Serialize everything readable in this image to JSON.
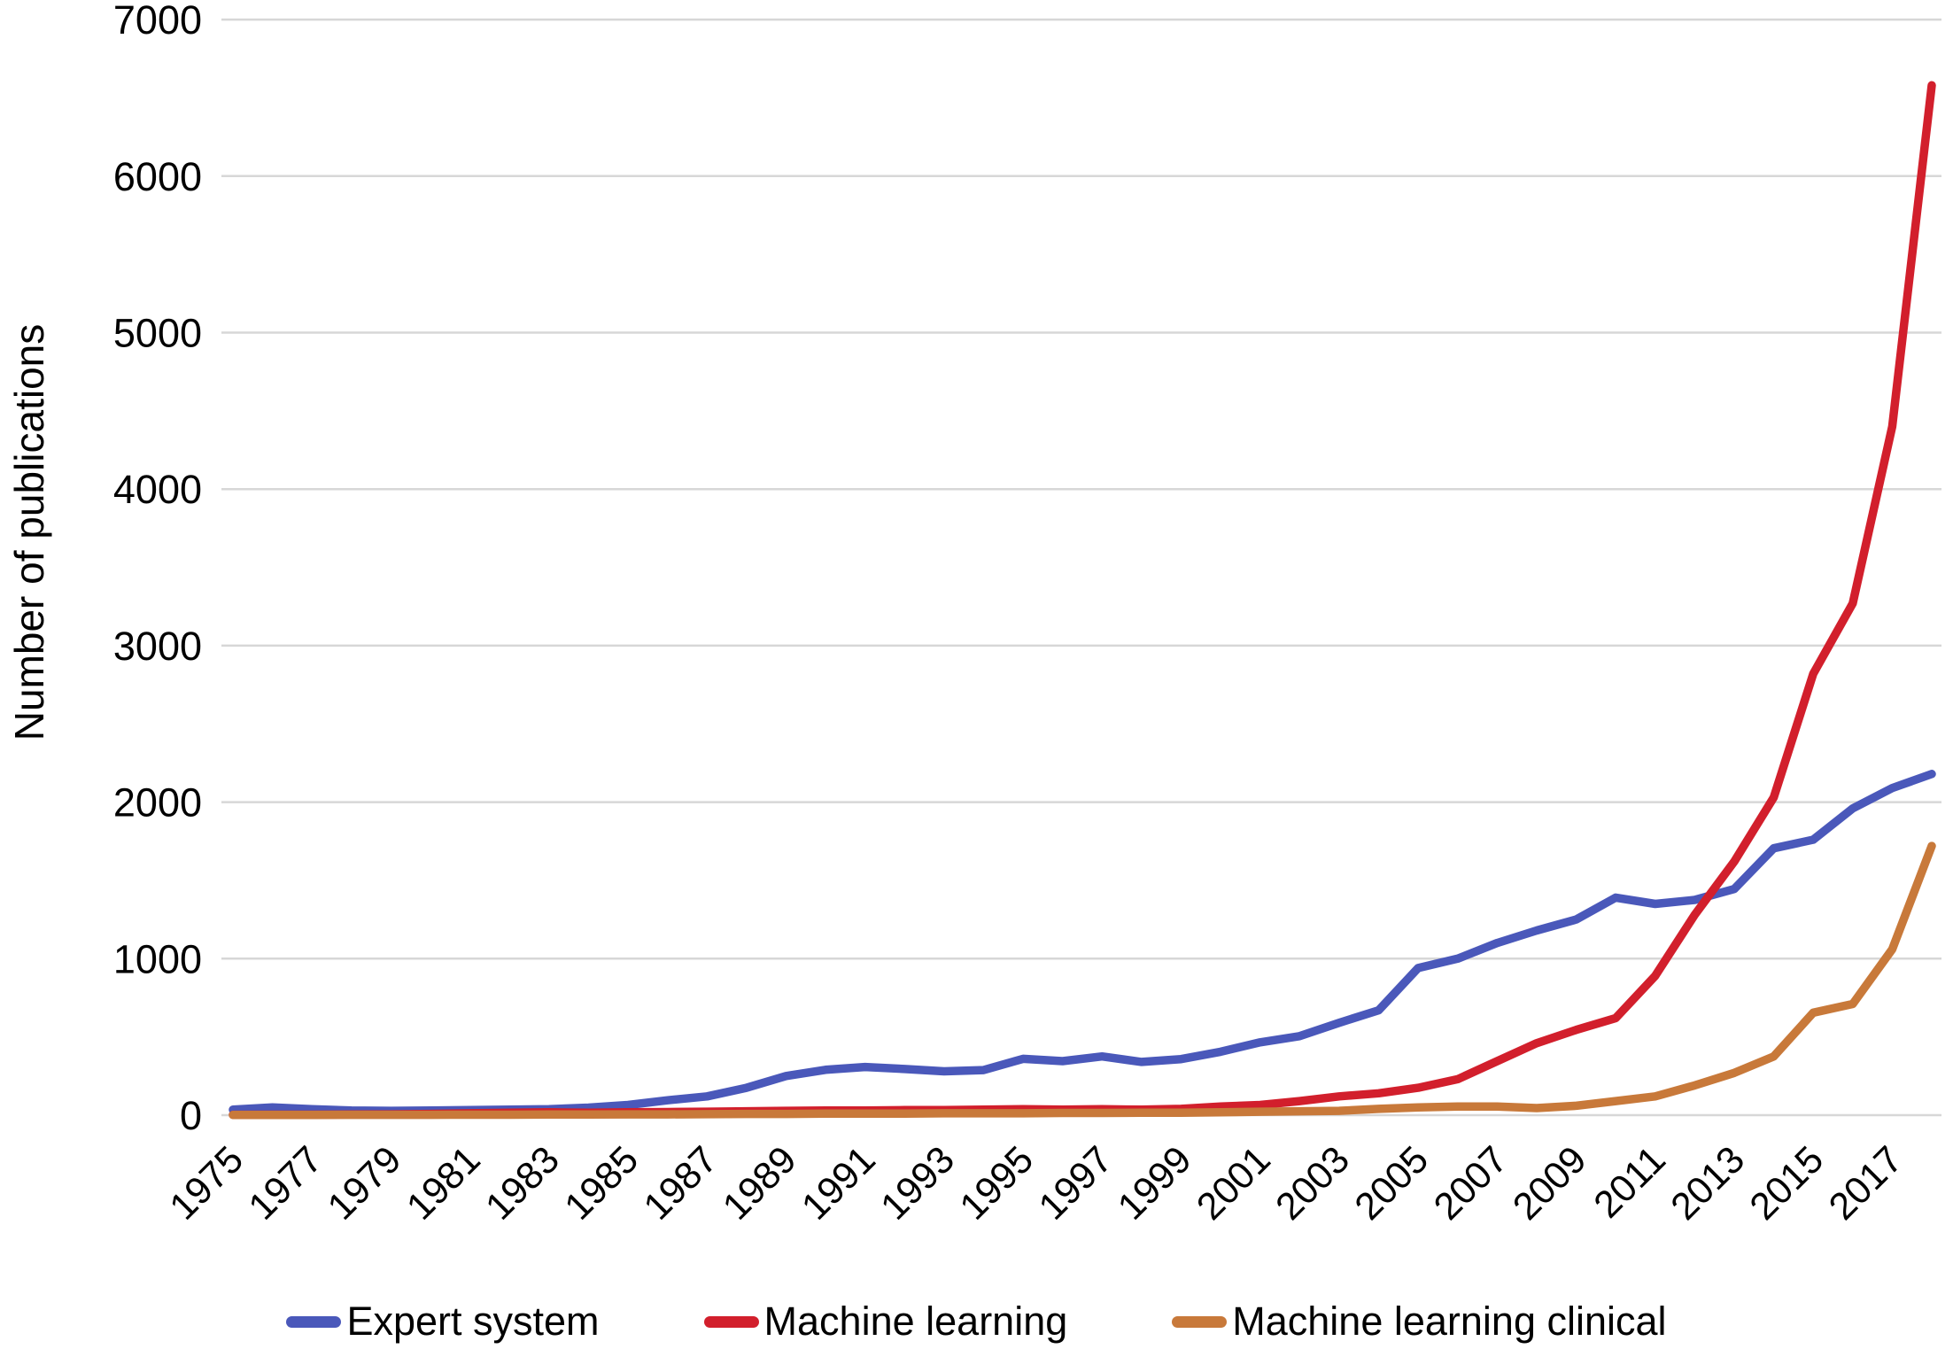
{
  "figure": {
    "background_color": "#ffffff",
    "axis_text_color": "#000000"
  },
  "chart_data": {
    "type": "line",
    "title": "",
    "xlabel": "",
    "ylabel": "Number of publications",
    "ylim": [
      0,
      7000
    ],
    "y_ticks": [
      0,
      1000,
      2000,
      3000,
      4000,
      5000,
      6000,
      7000
    ],
    "x_tick_labels": [
      "1975",
      "1977",
      "1979",
      "1981",
      "1983",
      "1985",
      "1987",
      "1989",
      "1991",
      "1993",
      "1995",
      "1997",
      "1999",
      "2001",
      "2003",
      "2005",
      "2007",
      "2009",
      "2011",
      "2013",
      "2015",
      "2017"
    ],
    "grid": "horizontal",
    "gridline_color": "#d7d7d7",
    "legend_position": "bottom",
    "x": [
      1975,
      1976,
      1977,
      1978,
      1979,
      1980,
      1981,
      1982,
      1983,
      1984,
      1985,
      1986,
      1987,
      1988,
      1989,
      1990,
      1991,
      1992,
      1993,
      1994,
      1995,
      1996,
      1997,
      1998,
      1999,
      2000,
      2001,
      2002,
      2003,
      2004,
      2005,
      2006,
      2007,
      2008,
      2009,
      2010,
      2011,
      2012,
      2013,
      2014,
      2015,
      2016,
      2017,
      2018
    ],
    "series": [
      {
        "name": "Expert system",
        "color": "#4a58ba",
        "values": [
          35,
          50,
          38,
          30,
          28,
          30,
          32,
          35,
          38,
          48,
          65,
          95,
          120,
          175,
          250,
          290,
          308,
          295,
          280,
          288,
          360,
          345,
          375,
          340,
          358,
          405,
          465,
          505,
          590,
          670,
          940,
          1000,
          1100,
          1180,
          1250,
          1390,
          1350,
          1375,
          1445,
          1705,
          1760,
          1960,
          2090,
          2180
        ]
      },
      {
        "name": "Machine learning",
        "color": "#d21f2c",
        "values": [
          2,
          3,
          3,
          4,
          5,
          8,
          12,
          15,
          18,
          15,
          18,
          20,
          22,
          25,
          28,
          30,
          30,
          32,
          32,
          35,
          38,
          35,
          38,
          35,
          40,
          55,
          65,
          90,
          120,
          140,
          175,
          230,
          345,
          460,
          545,
          620,
          890,
          1280,
          1620,
          2030,
          2820,
          3270,
          4400,
          6580
        ]
      },
      {
        "name": "Machine learning clinical",
        "color": "#c8793a",
        "values": [
          1,
          1,
          1,
          2,
          2,
          2,
          3,
          3,
          4,
          4,
          5,
          5,
          6,
          8,
          8,
          10,
          10,
          10,
          12,
          12,
          12,
          14,
          14,
          15,
          15,
          18,
          22,
          25,
          28,
          40,
          50,
          55,
          55,
          45,
          60,
          90,
          120,
          190,
          270,
          375,
          655,
          710,
          1060,
          1720
        ]
      }
    ]
  }
}
